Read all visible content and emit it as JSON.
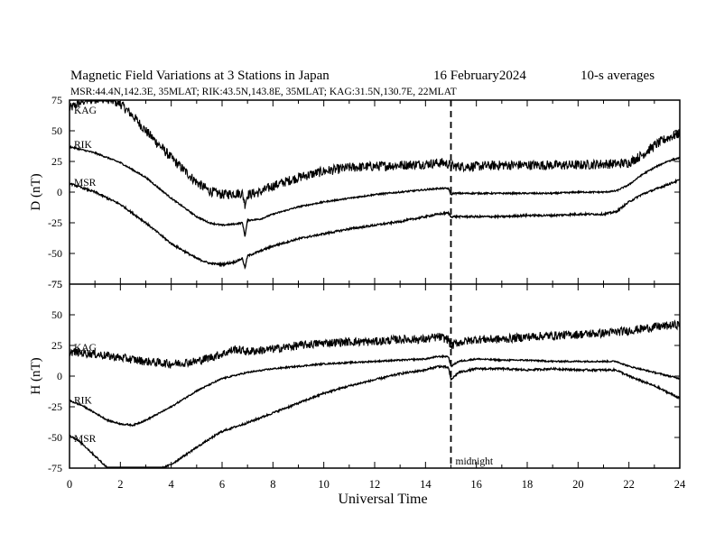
{
  "header": {
    "title": "Magnetic Field Variations at 3 Stations in Japan",
    "date": "16 February2024",
    "averaging": "10-s averages",
    "stations": "MSR:44.4N,142.3E, 35MLAT;  RIK:43.5N,143.8E, 35MLAT;  KAG:31.5N,130.7E, 22MLAT"
  },
  "annotation": {
    "midnight": "midnight",
    "midnight_ut": 15
  },
  "chart_data": [
    {
      "type": "line",
      "panel": "D",
      "ylabel": "D (nT)",
      "xlabel": "Universal Time",
      "xlim": [
        0,
        24
      ],
      "ylim": [
        -75,
        75
      ],
      "yticks": [
        -75,
        -50,
        -25,
        0,
        25,
        50,
        75
      ],
      "xticks": [
        0,
        2,
        4,
        6,
        8,
        10,
        12,
        14,
        16,
        18,
        20,
        22,
        24
      ],
      "series": [
        {
          "name": "KAG",
          "noise": 4.0,
          "x": [
            0,
            0.5,
            1,
            1.5,
            2,
            2.5,
            3,
            4,
            5,
            5.5,
            6,
            6.5,
            6.8,
            6.9,
            7,
            7.5,
            8,
            9,
            10,
            11,
            12,
            13,
            14,
            14.7,
            15,
            15.1,
            16,
            17,
            18,
            19,
            20,
            21,
            21.5,
            22,
            22.5,
            23,
            23.5,
            24
          ],
          "y": [
            68,
            74,
            77,
            76,
            72,
            62,
            50,
            28,
            8,
            1,
            -2,
            -1,
            -1,
            -10,
            -2,
            0,
            5,
            12,
            17,
            20,
            21,
            22,
            23,
            24,
            22,
            21,
            21,
            22,
            22,
            22,
            22,
            23,
            23,
            24,
            30,
            38,
            44,
            48
          ]
        },
        {
          "name": "RIK",
          "noise": 0.6,
          "x": [
            0,
            1,
            2,
            3,
            4,
            5,
            5.5,
            6,
            6.5,
            6.8,
            6.9,
            7,
            7.5,
            8,
            9,
            10,
            11,
            12,
            13,
            14,
            14.5,
            14.9,
            15,
            15.1,
            16,
            17,
            18,
            19,
            20,
            21,
            21.5,
            22,
            22.5,
            23,
            23.5,
            24
          ],
          "y": [
            37,
            32,
            24,
            12,
            -5,
            -20,
            -25,
            -27,
            -26,
            -25,
            -36,
            -23,
            -22,
            -18,
            -12,
            -8,
            -5,
            -2,
            0,
            2,
            3,
            3,
            -2,
            -1,
            -1,
            -1,
            -1,
            -1,
            0,
            0,
            1,
            6,
            14,
            20,
            25,
            28
          ]
        },
        {
          "name": "MSR",
          "noise": 0.8,
          "x": [
            0,
            1,
            2,
            3,
            4,
            5,
            5.5,
            6,
            6.5,
            6.8,
            6.9,
            7,
            7.5,
            8,
            9,
            10,
            11,
            12,
            13,
            14,
            14.5,
            14.9,
            15,
            15.1,
            16,
            17,
            18,
            19,
            20,
            21,
            21.5,
            22,
            22.5,
            23,
            23.5,
            24
          ],
          "y": [
            7,
            0,
            -10,
            -25,
            -42,
            -54,
            -58,
            -59,
            -57,
            -54,
            -62,
            -52,
            -48,
            -44,
            -38,
            -34,
            -30,
            -27,
            -24,
            -20,
            -18,
            -17,
            -20,
            -20,
            -20,
            -20,
            -19,
            -19,
            -18,
            -18,
            -16,
            -8,
            -2,
            2,
            6,
            10
          ]
        }
      ]
    },
    {
      "type": "line",
      "panel": "H",
      "ylabel": "H (nT)",
      "xlabel": "Universal Time",
      "xlim": [
        0,
        24
      ],
      "ylim": [
        -75,
        75
      ],
      "yticks": [
        -75,
        -50,
        -25,
        0,
        25,
        50,
        75
      ],
      "xticks": [
        0,
        2,
        4,
        6,
        8,
        10,
        12,
        14,
        16,
        18,
        20,
        22,
        24
      ],
      "series": [
        {
          "name": "KAG",
          "noise": 3.5,
          "x": [
            0,
            1,
            2,
            3,
            4,
            5,
            6,
            6.5,
            7,
            8,
            9,
            10,
            11,
            12,
            13,
            14,
            14.5,
            14.9,
            15,
            15.2,
            16,
            17,
            18,
            19,
            20,
            21,
            22,
            23,
            24
          ],
          "y": [
            20,
            18,
            15,
            12,
            10,
            12,
            18,
            22,
            20,
            22,
            25,
            27,
            28,
            28,
            30,
            30,
            32,
            30,
            24,
            27,
            30,
            30,
            32,
            33,
            34,
            35,
            37,
            40,
            42
          ]
        },
        {
          "name": "RIK",
          "noise": 0.6,
          "x": [
            0,
            0.5,
            1,
            1.5,
            2,
            2.5,
            3,
            4,
            5,
            6,
            7,
            8,
            9,
            10,
            11,
            12,
            13,
            14,
            14.5,
            14.9,
            15,
            15.3,
            16,
            17,
            18,
            19,
            20,
            21,
            21.5,
            22,
            23,
            24
          ],
          "y": [
            -20,
            -24,
            -30,
            -36,
            -39,
            -40,
            -36,
            -25,
            -12,
            -2,
            3,
            6,
            8,
            10,
            11,
            12,
            13,
            14,
            16,
            16,
            8,
            12,
            14,
            13,
            13,
            12,
            12,
            12,
            12,
            8,
            3,
            -2
          ]
        },
        {
          "name": "MSR",
          "noise": 0.8,
          "x": [
            0,
            0.5,
            1,
            1.5,
            2,
            2.5,
            3,
            3.5,
            4,
            5,
            6,
            7,
            8,
            9,
            10,
            11,
            12,
            13,
            14,
            14.5,
            14.9,
            15,
            15.3,
            16,
            17,
            18,
            19,
            20,
            21,
            21.5,
            22,
            23,
            24
          ],
          "y": [
            -48,
            -55,
            -65,
            -75,
            -80,
            -82,
            -80,
            -76,
            -72,
            -58,
            -45,
            -38,
            -30,
            -22,
            -14,
            -8,
            -3,
            2,
            5,
            8,
            7,
            -3,
            3,
            6,
            6,
            5,
            6,
            5,
            5,
            5,
            0,
            -8,
            -18
          ]
        }
      ]
    }
  ]
}
